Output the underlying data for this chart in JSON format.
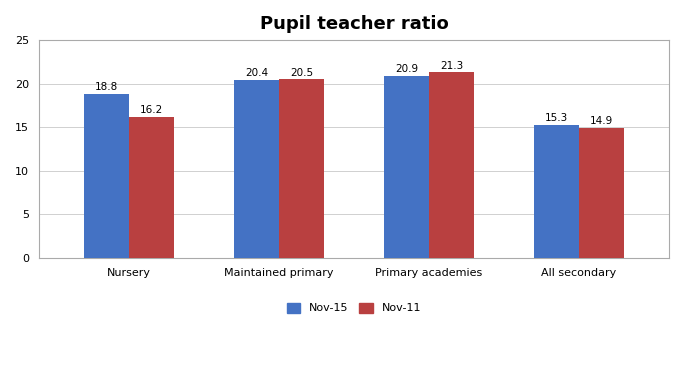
{
  "title": "Pupil teacher ratio",
  "categories": [
    "Nursery",
    "Maintained primary",
    "Primary academies",
    "All secondary"
  ],
  "nov15_values": [
    18.8,
    20.4,
    20.9,
    15.3
  ],
  "nov11_values": [
    16.2,
    20.5,
    21.3,
    14.9
  ],
  "nov15_color": "#4472C4",
  "nov11_color": "#B94040",
  "ylim": [
    0,
    25
  ],
  "yticks": [
    0,
    5,
    10,
    15,
    20,
    25
  ],
  "legend_labels": [
    "Nov-15",
    "Nov-11"
  ],
  "bar_width": 0.3,
  "title_fontsize": 13,
  "tick_fontsize": 8,
  "label_fontsize": 7.5,
  "background_color": "#FFFFFF",
  "chart_bg_color": "#FFFFFF",
  "grid_color": "#D0D0D0",
  "border_color": "#AAAAAA"
}
